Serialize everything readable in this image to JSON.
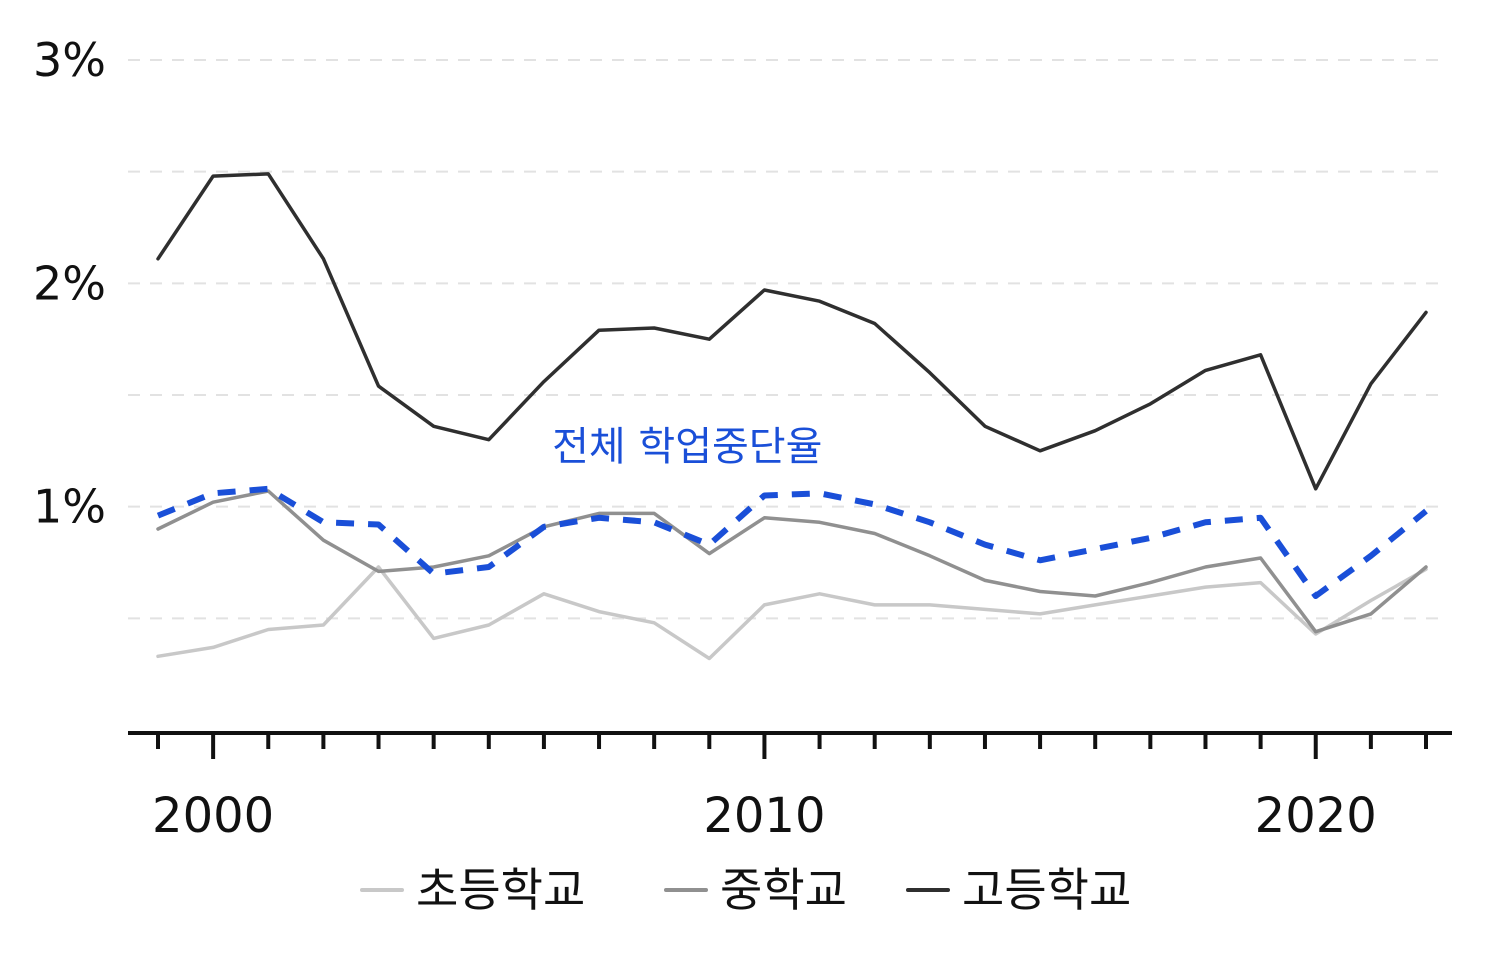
{
  "chart_data": {
    "type": "line",
    "title": "",
    "xlabel": "",
    "ylabel": "",
    "x": [
      1999,
      2000,
      2001,
      2002,
      2003,
      2004,
      2005,
      2006,
      2007,
      2008,
      2009,
      2010,
      2011,
      2012,
      2013,
      2014,
      2015,
      2016,
      2017,
      2018,
      2019,
      2020,
      2021,
      2022
    ],
    "xlim": [
      1998.6,
      2022.6
    ],
    "ylim": [
      0,
      3
    ],
    "y_ticks": [
      1,
      2,
      3
    ],
    "y_tick_labels": [
      "1%",
      "2%",
      "3%"
    ],
    "x_tick_labels": [
      "2000",
      "2010",
      "2020"
    ],
    "x_tick_values": [
      2000,
      2010,
      2020
    ],
    "grid": "horizontal dashed every 0.5%",
    "legend_position": "bottom",
    "series": [
      {
        "name": "초등학교",
        "color": "#c8c8c8",
        "values": [
          0.33,
          0.37,
          0.45,
          0.47,
          0.73,
          0.41,
          0.47,
          0.61,
          0.53,
          0.48,
          0.32,
          0.56,
          0.61,
          0.56,
          0.56,
          0.54,
          0.52,
          0.56,
          0.6,
          0.64,
          0.66,
          0.43,
          0.58,
          0.72
        ]
      },
      {
        "name": "중학교",
        "color": "#909090",
        "values": [
          0.9,
          1.02,
          1.07,
          0.85,
          0.71,
          0.73,
          0.78,
          0.91,
          0.97,
          0.97,
          0.79,
          0.95,
          0.93,
          0.88,
          0.78,
          0.67,
          0.62,
          0.6,
          0.66,
          0.73,
          0.77,
          0.44,
          0.52,
          0.73
        ]
      },
      {
        "name": "고등학교",
        "color": "#2f2f2f",
        "values": [
          2.11,
          2.48,
          2.49,
          2.11,
          1.54,
          1.36,
          1.3,
          1.56,
          1.79,
          1.8,
          1.75,
          1.97,
          1.92,
          1.82,
          1.6,
          1.36,
          1.25,
          1.34,
          1.46,
          1.61,
          1.68,
          1.08,
          1.55,
          1.87
        ]
      },
      {
        "name": "전체 학업중단율",
        "color": "#1a4fd8",
        "dashed": true,
        "values": [
          0.96,
          1.06,
          1.08,
          0.93,
          0.92,
          0.7,
          0.73,
          0.91,
          0.95,
          0.93,
          0.83,
          1.05,
          1.06,
          1.01,
          0.93,
          0.83,
          0.76,
          0.81,
          0.86,
          0.93,
          0.95,
          0.6,
          0.78,
          0.98
        ]
      }
    ],
    "annotations": [
      {
        "text": "전체 학업중단율",
        "color": "#1a4fd8",
        "x": 2008.6,
        "y": 1.21
      }
    ]
  }
}
